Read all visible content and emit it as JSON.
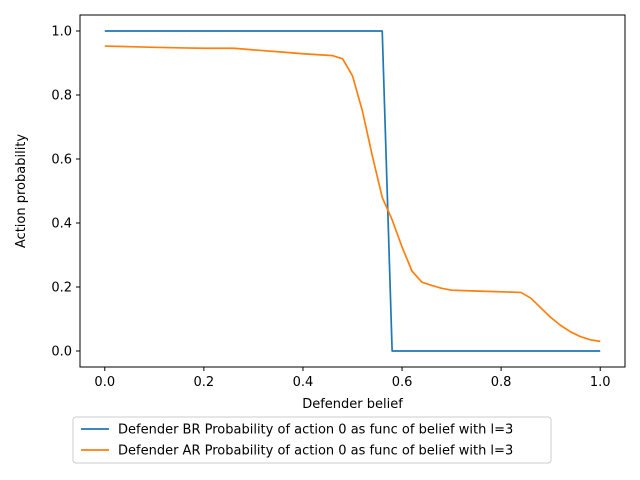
{
  "chart_data": {
    "type": "line",
    "xlabel": "Defender belief",
    "ylabel": "Action probability",
    "xlim": [
      -0.05,
      1.05
    ],
    "ylim": [
      -0.05,
      1.05
    ],
    "xticks": [
      0.0,
      0.2,
      0.4,
      0.6,
      0.8,
      1.0
    ],
    "xtick_labels": [
      "0.0",
      "0.2",
      "0.4",
      "0.6",
      "0.8",
      "1.0"
    ],
    "yticks": [
      0.0,
      0.2,
      0.4,
      0.6,
      0.8,
      1.0
    ],
    "ytick_labels": [
      "0.0",
      "0.2",
      "0.4",
      "0.6",
      "0.8",
      "1.0"
    ],
    "grid": false,
    "legend_position": "bottom-left, below axes",
    "series": [
      {
        "name": "Defender BR Probability of action 0 as func of belief with l=3",
        "color": "#1f77b4",
        "x": [
          0.0,
          0.56,
          0.58,
          1.0
        ],
        "y": [
          1.0,
          1.0,
          0.0,
          0.0
        ]
      },
      {
        "name": "Defender AR Probability of action 0 as func of belief with l=3",
        "color": "#ff7f0e",
        "x": [
          0.0,
          0.05,
          0.1,
          0.16,
          0.2,
          0.26,
          0.3,
          0.36,
          0.4,
          0.44,
          0.46,
          0.48,
          0.5,
          0.52,
          0.54,
          0.56,
          0.58,
          0.6,
          0.62,
          0.64,
          0.66,
          0.68,
          0.7,
          0.74,
          0.78,
          0.84,
          0.86,
          0.88,
          0.9,
          0.92,
          0.94,
          0.96,
          0.98,
          1.0
        ],
        "y": [
          0.953,
          0.951,
          0.949,
          0.947,
          0.946,
          0.946,
          0.941,
          0.934,
          0.929,
          0.925,
          0.923,
          0.913,
          0.86,
          0.75,
          0.61,
          0.48,
          0.41,
          0.325,
          0.25,
          0.215,
          0.205,
          0.196,
          0.19,
          0.188,
          0.186,
          0.183,
          0.165,
          0.135,
          0.105,
          0.08,
          0.06,
          0.045,
          0.035,
          0.03
        ]
      }
    ]
  }
}
